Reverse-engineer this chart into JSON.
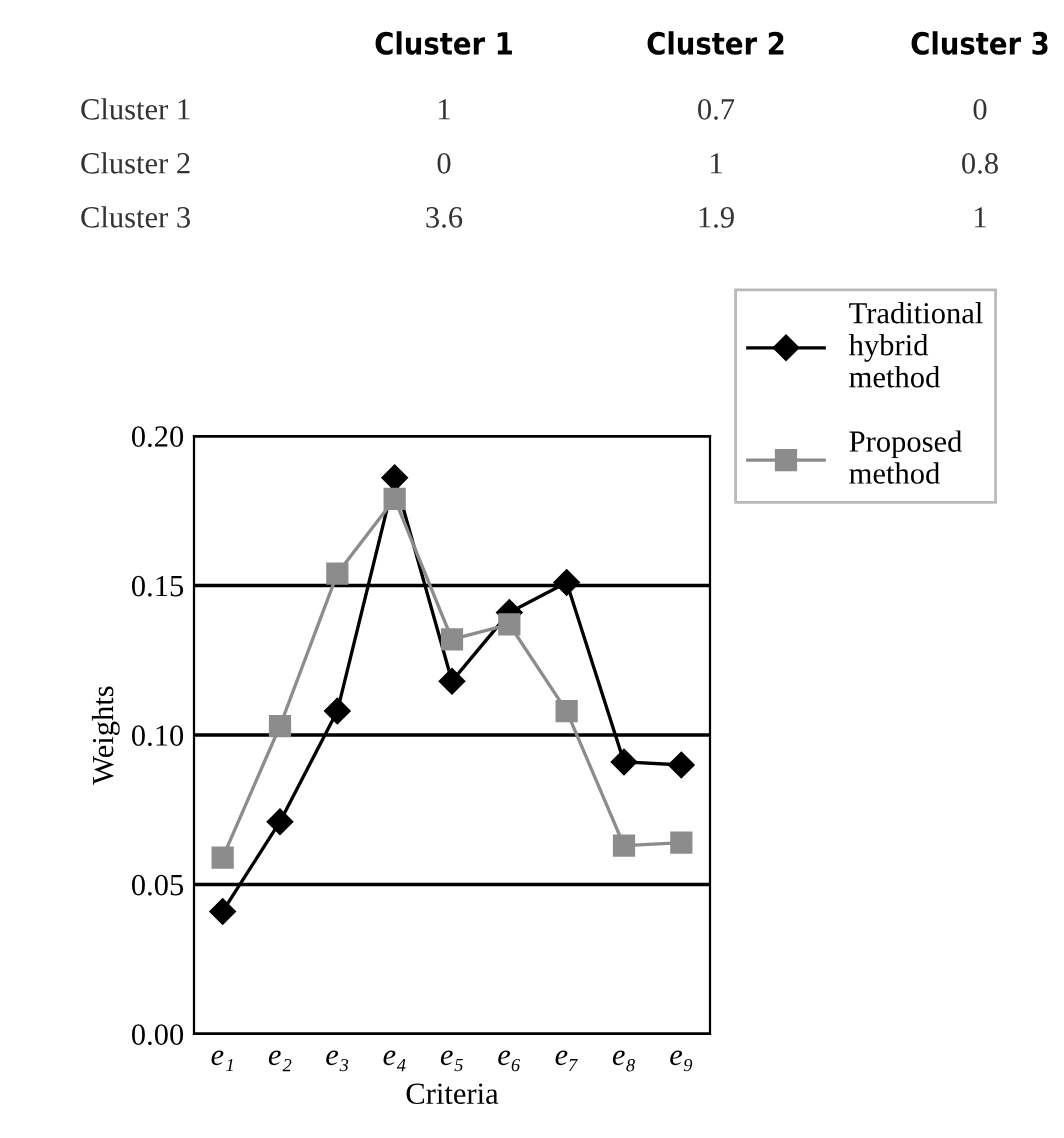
{
  "chart_data": [
    {
      "type": "other",
      "categories": [
        "Cluster 1",
        "Cluster 2",
        "Cluster 3"
      ],
      "y_categories": [
        "Cluster 1",
        "Cluster 2",
        "Cluster 3"
      ],
      "cell_labels": [
        [
          "1",
          "0.7",
          "0"
        ],
        [
          "0",
          "1",
          "0.8"
        ],
        [
          "3.6",
          "1.9",
          "1"
        ]
      ]
    },
    {
      "type": "line",
      "xlabel": "Criteria",
      "ylabel": "Weights",
      "categories": [
        "e₁",
        "e₂",
        "e₃",
        "e₄",
        "e₅",
        "e₆",
        "e₇",
        "e₈",
        "e₉"
      ],
      "series": [
        {
          "name": "Traditional hybrid method",
          "color": "#000000",
          "marker": "diamond",
          "values": [
            0.041,
            0.071,
            0.108,
            0.186,
            0.118,
            0.141,
            0.151,
            0.091,
            0.09
          ]
        },
        {
          "name": "Proposed method",
          "color": "#8c8c8c",
          "marker": "square",
          "values": [
            0.059,
            0.103,
            0.154,
            0.179,
            0.132,
            0.137,
            0.108,
            0.063,
            0.064
          ]
        }
      ],
      "ylim": [
        0,
        0.2
      ],
      "yticks": [
        {
          "value": 0,
          "label": "0.00"
        },
        {
          "value": 0.05,
          "label": "0.05"
        },
        {
          "value": 0.1,
          "label": "0.10"
        },
        {
          "value": 0.15,
          "label": "0.15"
        },
        {
          "value": 0.2,
          "label": "0.20"
        }
      ],
      "grid": "y",
      "legend": "top right"
    }
  ]
}
